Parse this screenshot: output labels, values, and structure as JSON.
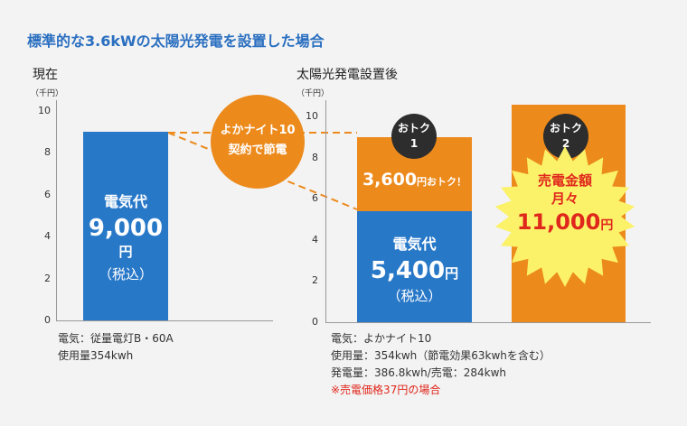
{
  "title": "標準的な3.6kWの太陽光発電を設置した場合",
  "left_panel": {
    "title": "現在",
    "unit": "（千円）",
    "bar_label": "電気代",
    "bar_value": "9,000",
    "bar_yen": "円",
    "bar_tax": "（税込）",
    "notes": [
      "電気：従量電灯B・60A",
      "使用量354kwh"
    ]
  },
  "connector": {
    "line1": "よかナイト10",
    "line2": "契約で節電"
  },
  "right_panel": {
    "title": "太陽光発電設置後",
    "unit": "（千円）",
    "badge1": {
      "line1": "おトク",
      "line2": "1"
    },
    "badge2": {
      "line1": "おトク",
      "line2": "2"
    },
    "saving_value": "3,600",
    "saving_suffix": "円おトク！",
    "bar_label": "電気代",
    "bar_value": "5,400",
    "bar_yen": "円",
    "bar_tax": "（税込）",
    "star_line1": "売電金額",
    "star_line2": "月々",
    "star_value": "11,000",
    "star_yen": "円",
    "notes": [
      "電気：よかナイト10",
      "使用量：354kwh（節電効果63kwhを含む）",
      "発電量：386.8kwh/売電：284kwh"
    ],
    "note_red": "※売電価格37円の場合"
  },
  "colors": {
    "blue": "#2878c8",
    "orange": "#ec8a1c",
    "title": "#2a6fc0",
    "red": "#e0271c",
    "yellow": "#fbf26a"
  },
  "chart_data": [
    {
      "type": "bar",
      "title": "現在",
      "ylabel": "（千円）",
      "ylim": [
        0,
        10
      ],
      "yticks": [
        "0",
        "2",
        "4",
        "6",
        "8",
        "10"
      ],
      "series": [
        {
          "name": "電気代",
          "values": [
            9.0
          ]
        }
      ]
    },
    {
      "type": "bar",
      "title": "太陽光発電設置後",
      "ylabel": "（千円）",
      "ylim": [
        0,
        11
      ],
      "yticks": [
        "0",
        "2",
        "4",
        "6",
        "8",
        "10"
      ],
      "stacked": true,
      "series": [
        {
          "name": "電気代",
          "values": [
            5.4,
            0
          ]
        },
        {
          "name": "おトク1",
          "values": [
            3.6,
            0
          ]
        },
        {
          "name": "売電金額",
          "values": [
            0,
            11.0
          ]
        }
      ]
    }
  ]
}
